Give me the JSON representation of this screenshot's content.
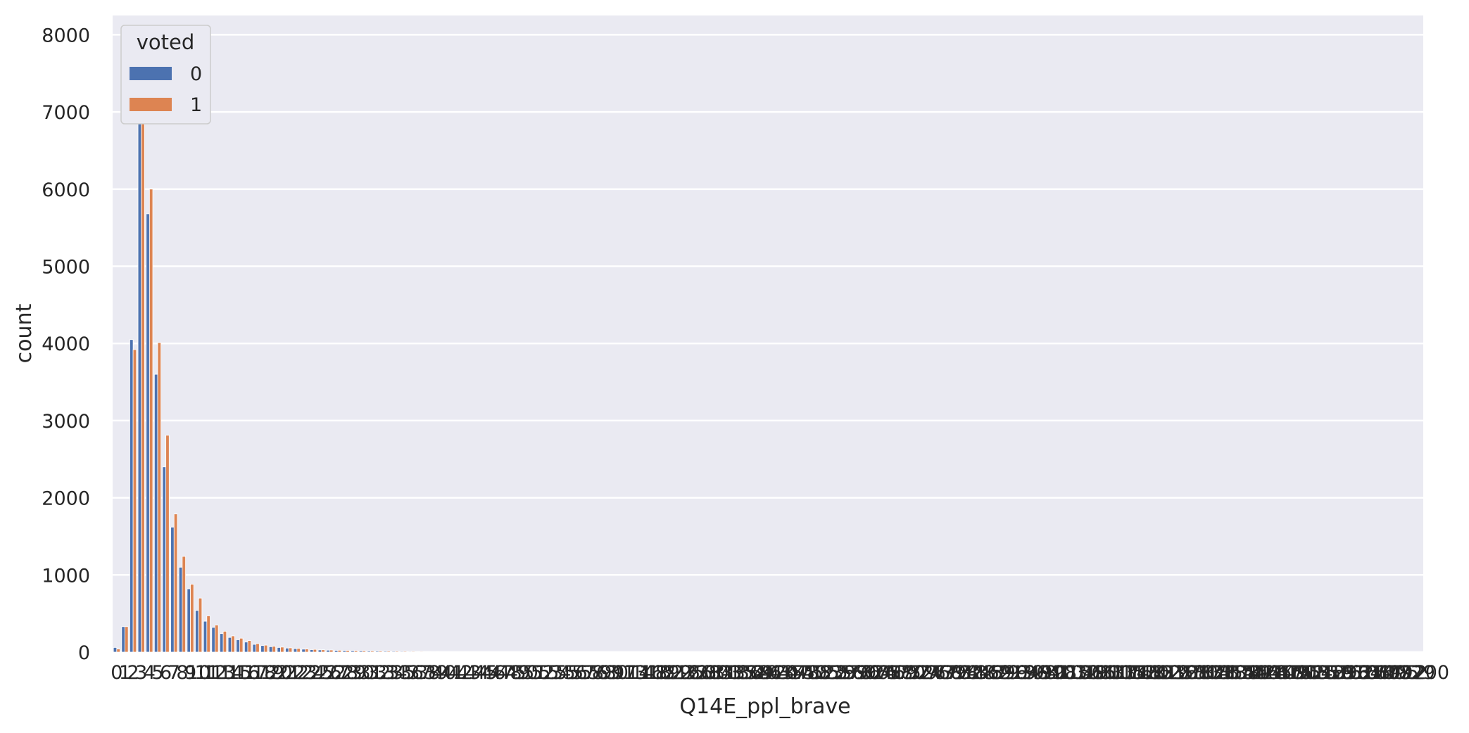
{
  "chart_data": {
    "type": "bar",
    "title": "",
    "xlabel": "Q14E_ppl_brave",
    "ylabel": "count",
    "ylim": [
      0,
      8250
    ],
    "yticks": [
      0,
      1000,
      2000,
      3000,
      4000,
      5000,
      6000,
      7000,
      8000
    ],
    "grid": true,
    "category_count": 160,
    "categories": [
      "0",
      "1",
      "2",
      "3",
      "4",
      "5",
      "6",
      "7",
      "8",
      "9",
      "10",
      "11",
      "12",
      "13",
      "14",
      "15",
      "16",
      "17",
      "18",
      "19",
      "20",
      "21",
      "22",
      "23",
      "24",
      "25",
      "26",
      "27",
      "28",
      "29",
      "30",
      "31",
      "32",
      "33",
      "34",
      "35",
      "36",
      "37",
      "38",
      "39",
      "40",
      "41",
      "42",
      "43",
      "44",
      "45",
      "46",
      "47",
      "48",
      "49",
      "50",
      "51",
      "52",
      "53",
      "54",
      "55",
      "56",
      "57",
      "58",
      "59"
    ],
    "last_category": "99200",
    "legend": {
      "title": "voted",
      "placement": "top-left"
    },
    "colors": {
      "0": "#4c72b0",
      "1": "#dd8452"
    },
    "series": [
      {
        "name": "0",
        "values": [
          60,
          330,
          4050,
          7300,
          5680,
          3600,
          2400,
          1620,
          1100,
          820,
          540,
          400,
          320,
          240,
          190,
          160,
          130,
          100,
          85,
          70,
          60,
          52,
          45,
          38,
          32,
          28,
          25,
          22,
          19,
          17,
          15,
          13,
          12,
          11,
          10,
          9,
          8,
          7,
          7,
          6,
          6,
          5,
          5,
          4,
          4,
          4,
          3,
          3,
          3,
          3,
          2,
          2,
          2,
          2,
          2,
          2,
          2,
          2,
          1,
          1
        ]
      },
      {
        "name": "1",
        "values": [
          40,
          330,
          3920,
          7650,
          6000,
          4010,
          2810,
          1790,
          1240,
          880,
          700,
          470,
          350,
          270,
          210,
          180,
          150,
          110,
          90,
          75,
          65,
          55,
          48,
          40,
          35,
          30,
          27,
          24,
          21,
          18,
          16,
          14,
          13,
          12,
          11,
          10,
          9,
          8,
          7,
          7,
          6,
          6,
          5,
          5,
          5,
          4,
          4,
          4,
          3,
          3,
          3,
          3,
          2,
          2,
          2,
          2,
          2,
          2,
          2,
          2
        ]
      }
    ]
  }
}
